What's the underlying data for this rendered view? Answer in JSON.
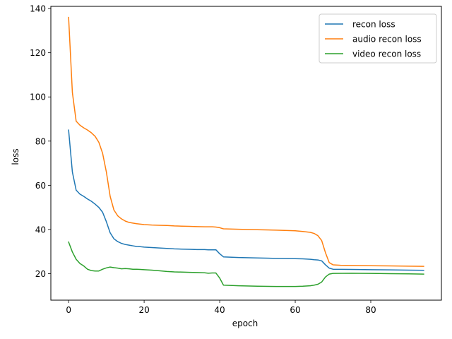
{
  "chart_data": {
    "type": "line",
    "title": "",
    "xlabel": "epoch",
    "ylabel": "loss",
    "xlim": [
      -4.7,
      98.7
    ],
    "ylim": [
      8.0,
      141.0
    ],
    "xticks": [
      0,
      20,
      40,
      60,
      80
    ],
    "yticks": [
      20,
      40,
      60,
      80,
      100,
      120,
      140
    ],
    "grid": false,
    "legend": "top-right",
    "series": [
      {
        "name": "recon loss",
        "color": "#1f77b4",
        "x": [
          0,
          1,
          2,
          3,
          4,
          5,
          6,
          7,
          8,
          9,
          10,
          11,
          12,
          13,
          14,
          15,
          16,
          17,
          18,
          19,
          20,
          22,
          24,
          26,
          28,
          30,
          32,
          34,
          36,
          37,
          38,
          39,
          40,
          41,
          45,
          50,
          55,
          60,
          62,
          64,
          65,
          66,
          67,
          68,
          69,
          70,
          75,
          80,
          85,
          90,
          94
        ],
        "y": [
          85,
          66,
          57.8,
          56,
          55,
          53.8,
          52.8,
          51.5,
          50,
          47.8,
          43.5,
          38.5,
          35.8,
          34.5,
          33.7,
          33.2,
          32.9,
          32.6,
          32.3,
          32.2,
          32,
          31.8,
          31.6,
          31.4,
          31.2,
          31.1,
          31,
          30.9,
          30.9,
          30.8,
          30.8,
          30.8,
          29,
          27.6,
          27.3,
          27.1,
          26.9,
          26.8,
          26.7,
          26.5,
          26.3,
          26.2,
          25.8,
          24,
          22.5,
          22,
          21.9,
          21.8,
          21.7,
          21.6,
          21.5
        ]
      },
      {
        "name": "audio recon loss",
        "color": "#ff7f0e",
        "x": [
          0,
          1,
          2,
          3,
          4,
          5,
          6,
          7,
          8,
          9,
          10,
          11,
          12,
          13,
          14,
          15,
          16,
          17,
          18,
          19,
          20,
          22,
          24,
          26,
          28,
          30,
          32,
          34,
          36,
          38,
          39,
          40,
          41,
          45,
          50,
          55,
          60,
          62,
          64,
          65,
          66,
          67,
          68,
          69,
          70,
          72,
          75,
          80,
          85,
          90,
          94
        ],
        "y": [
          136,
          102,
          89,
          87.2,
          86,
          85,
          83.8,
          82.2,
          79.5,
          74.5,
          66,
          55,
          48.8,
          46.2,
          44.8,
          43.8,
          43.2,
          42.9,
          42.6,
          42.4,
          42.2,
          42,
          41.9,
          41.8,
          41.6,
          41.5,
          41.4,
          41.3,
          41.2,
          41.2,
          41.1,
          40.8,
          40.3,
          40.1,
          39.9,
          39.7,
          39.4,
          39.1,
          38.7,
          38.2,
          37.2,
          35,
          29.5,
          25,
          24,
          23.8,
          23.7,
          23.6,
          23.5,
          23.4,
          23.3
        ]
      },
      {
        "name": "video recon loss",
        "color": "#2ca02c",
        "x": [
          0,
          1,
          2,
          3,
          4,
          5,
          6,
          7,
          8,
          9,
          10,
          11,
          12,
          13,
          14,
          15,
          16,
          17,
          18,
          19,
          20,
          22,
          24,
          26,
          28,
          30,
          32,
          34,
          36,
          37,
          38,
          39,
          40,
          41,
          45,
          50,
          55,
          60,
          62,
          64,
          65,
          66,
          67,
          68,
          69,
          70,
          75,
          80,
          85,
          90,
          94
        ],
        "y": [
          34.3,
          29.8,
          26.5,
          24.6,
          23.5,
          22,
          21.4,
          21.2,
          21.2,
          22,
          22.6,
          23,
          22.7,
          22.5,
          22.2,
          22.3,
          22.2,
          22,
          22,
          21.9,
          21.8,
          21.6,
          21.3,
          21,
          20.8,
          20.7,
          20.6,
          20.5,
          20.4,
          20.2,
          20.3,
          20.3,
          18,
          14.8,
          14.5,
          14.3,
          14.2,
          14.2,
          14.3,
          14.5,
          14.8,
          15.2,
          16.2,
          18.5,
          19.8,
          20.1,
          20.2,
          20.1,
          20,
          19.9,
          19.8
        ]
      }
    ]
  }
}
